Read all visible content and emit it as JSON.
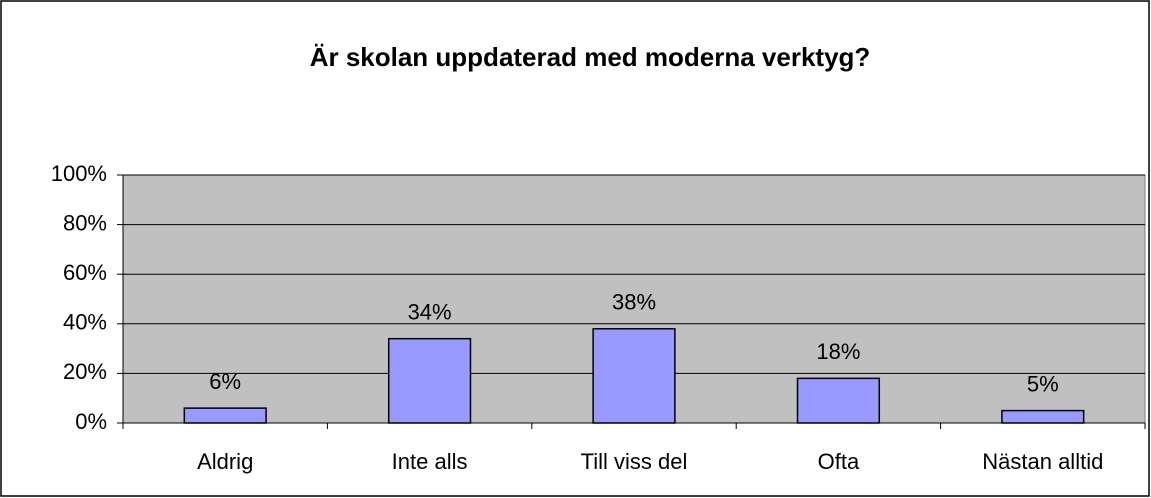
{
  "chart_data": {
    "type": "bar",
    "title": "Är skolan uppdaterad med moderna verktyg?",
    "categories": [
      "Aldrig",
      "Inte alls",
      "Till viss del",
      "Ofta",
      "Nästan alltid"
    ],
    "values": [
      6,
      34,
      38,
      18,
      5
    ],
    "value_labels": [
      "6%",
      "34%",
      "38%",
      "18%",
      "5%"
    ],
    "color": "#9999ff",
    "ylim": [
      0,
      100
    ],
    "yticks": [
      {
        "value": 0,
        "label": "0%"
      },
      {
        "value": 20,
        "label": "20%"
      },
      {
        "value": 40,
        "label": "40%"
      },
      {
        "value": 60,
        "label": "60%"
      },
      {
        "value": 80,
        "label": "80%"
      },
      {
        "value": 100,
        "label": "100%"
      }
    ],
    "grid": true
  }
}
